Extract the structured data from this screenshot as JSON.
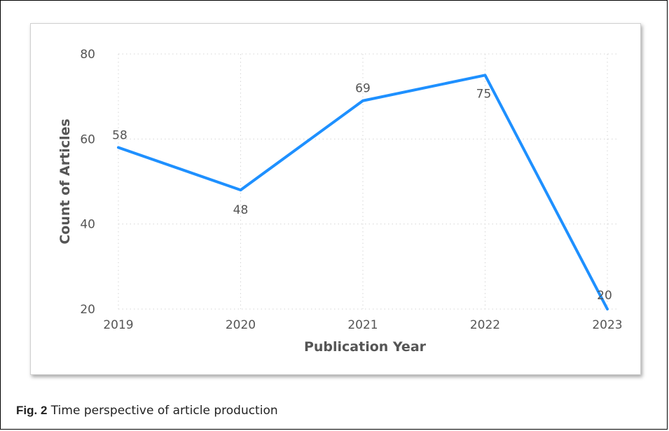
{
  "chart_data": {
    "type": "line",
    "title": "",
    "xlabel": "Publication Year",
    "ylabel": "Count of Articles",
    "categories": [
      "2019",
      "2020",
      "2021",
      "2022",
      "2023"
    ],
    "series": [
      {
        "values": [
          58,
          48,
          69,
          75,
          20
        ],
        "color": "#1e90ff"
      }
    ],
    "data_labels": [
      "58",
      "48",
      "69",
      "75",
      "20"
    ],
    "yticks": [
      20,
      40,
      60,
      80
    ],
    "ylim": [
      20,
      80
    ],
    "grid": true
  },
  "caption": {
    "label": "Fig. 2",
    "text": " Time perspective of article production"
  }
}
